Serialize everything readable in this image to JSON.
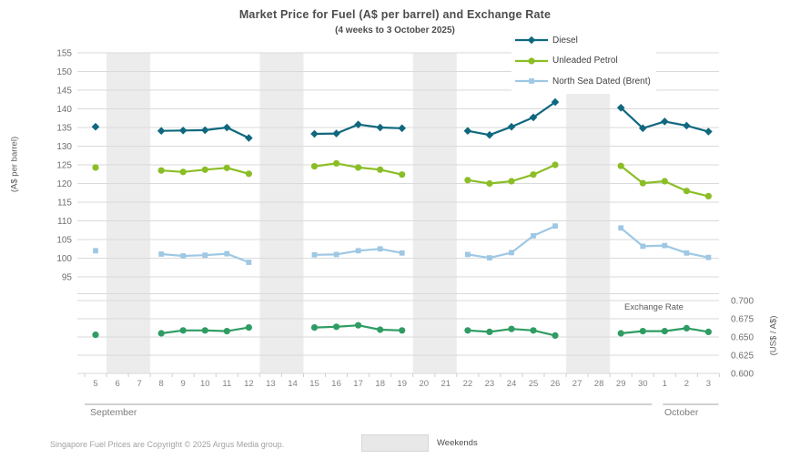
{
  "title": "Market Price for Fuel (A$ per barrel) and Exchange Rate",
  "subtitle": "(4 weeks to 3 October 2025)",
  "footer": {
    "copyright": "Singapore Fuel Prices are Copyright © 2025 Argus Media group.",
    "weekends_label": "Weekends"
  },
  "colors": {
    "diesel": "#10687f",
    "unleaded_petrol": "#8bbe26",
    "brent": "#9ec8e4",
    "exchange_rate": "#2f9c63",
    "weekend_band": "#ececec",
    "gridline": "#dadada",
    "month_line": "#a3a3a3",
    "tick_text": "#6e6e6e",
    "day_text": "#828282",
    "title_text": "#4c4c4c"
  },
  "chart_data": {
    "type": "line",
    "title": "Market Price for Fuel (A$ per barrel) and Exchange Rate",
    "subtitle": "(4 weeks to 3 October 2025)",
    "ylabel_left": "(A$ per barrel)",
    "ylabel_right": "(US$ / A$)",
    "exchange_rate_label": "Exchange Rate",
    "categories": [
      "5",
      "6",
      "7",
      "8",
      "9",
      "10",
      "11",
      "12",
      "13",
      "14",
      "15",
      "16",
      "17",
      "18",
      "19",
      "20",
      "21",
      "22",
      "23",
      "24",
      "25",
      "26",
      "27",
      "28",
      "29",
      "30",
      "1",
      "2",
      "3"
    ],
    "month_groups": [
      {
        "label": "September",
        "days": 26
      },
      {
        "label": "October",
        "days": 3
      }
    ],
    "y_left": {
      "min": 95,
      "max": 155,
      "step": 5
    },
    "y_right": {
      "min": 0.6,
      "max": 0.7,
      "step": 0.025
    },
    "y_left_ticks": [
      "155",
      "150",
      "145",
      "140",
      "135",
      "130",
      "125",
      "120",
      "115",
      "110",
      "105",
      "100",
      "95"
    ],
    "y_right_ticks": [
      "0.700",
      "0.675",
      "0.650",
      "0.625",
      "0.600"
    ],
    "weekend_day_indices": [
      [
        1,
        2
      ],
      [
        8,
        9
      ],
      [
        15,
        16
      ],
      [
        22,
        23
      ]
    ],
    "series": [
      {
        "name": "Diesel",
        "axis": "left",
        "marker": "diamond",
        "color": "#10687f",
        "values": [
          135.2,
          null,
          null,
          134.1,
          134.2,
          134.3,
          135.0,
          132.2,
          null,
          null,
          133.3,
          133.4,
          135.8,
          135.0,
          134.8,
          null,
          null,
          134.1,
          133.0,
          135.2,
          137.7,
          141.8,
          null,
          null,
          140.3,
          134.8,
          136.6,
          135.5,
          133.9
        ]
      },
      {
        "name": "Unleaded Petrol",
        "axis": "left",
        "marker": "circle",
        "color": "#8bbe26",
        "values": [
          124.3,
          null,
          null,
          123.5,
          123.1,
          123.7,
          124.2,
          122.6,
          null,
          null,
          124.6,
          125.4,
          124.3,
          123.7,
          122.4,
          null,
          null,
          120.9,
          120.0,
          120.6,
          122.4,
          125.0,
          null,
          null,
          124.7,
          120.1,
          120.6,
          118.0,
          116.6
        ]
      },
      {
        "name": "North Sea Dated (Brent)",
        "axis": "left",
        "marker": "square",
        "color": "#9ec8e4",
        "values": [
          102.0,
          null,
          null,
          101.1,
          100.6,
          100.8,
          101.2,
          98.9,
          null,
          null,
          100.9,
          101.0,
          102.0,
          102.5,
          101.4,
          null,
          null,
          101.0,
          100.1,
          101.5,
          106.0,
          108.6,
          null,
          null,
          108.1,
          103.2,
          103.4,
          101.4,
          100.2
        ]
      },
      {
        "name": "Exchange Rate",
        "axis": "right",
        "marker": "circle",
        "color": "#2f9c63",
        "values": [
          0.653,
          null,
          null,
          0.655,
          0.659,
          0.659,
          0.658,
          0.663,
          null,
          null,
          0.663,
          0.664,
          0.666,
          0.66,
          0.659,
          null,
          null,
          0.659,
          0.657,
          0.661,
          0.659,
          0.652,
          null,
          null,
          0.655,
          0.658,
          0.658,
          0.662,
          0.657
        ]
      }
    ]
  }
}
